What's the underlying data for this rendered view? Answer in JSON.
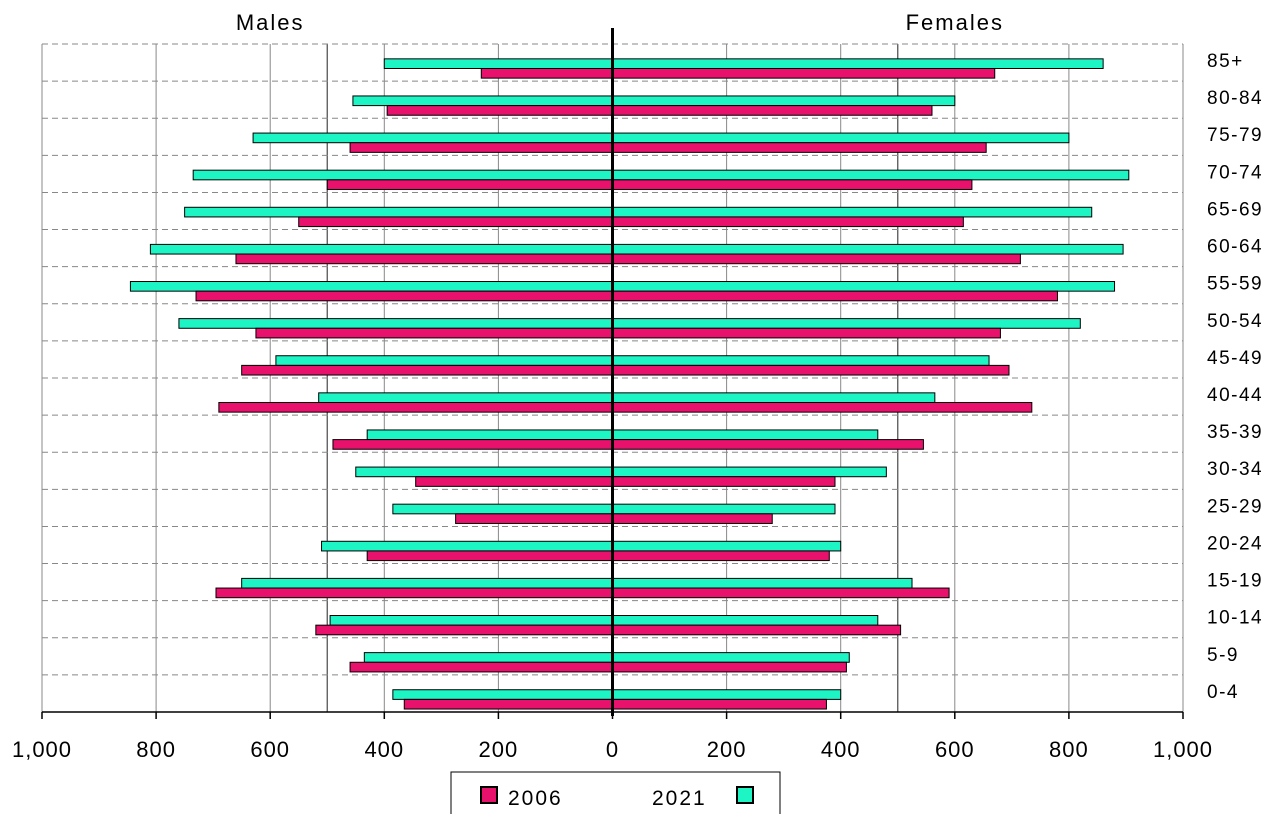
{
  "chart_data": {
    "type": "bar",
    "orientation": "horizontal",
    "subtype": "population-pyramid",
    "title": "",
    "left_label": "Males",
    "right_label": "Females",
    "categories": [
      "0-4",
      "5-9",
      "10-14",
      "15-19",
      "20-24",
      "25-29",
      "30-34",
      "35-39",
      "40-44",
      "45-49",
      "50-54",
      "55-59",
      "60-64",
      "65-69",
      "70-74",
      "75-79",
      "80-84",
      "85+"
    ],
    "xlim": [
      -1000,
      1000
    ],
    "x_ticks": [
      -1000,
      -800,
      -600,
      -400,
      -200,
      0,
      200,
      400,
      600,
      800,
      1000
    ],
    "x_tick_labels": [
      "1,000",
      "800",
      "600",
      "400",
      "200",
      "0",
      "200",
      "400",
      "600",
      "800",
      "1,000"
    ],
    "grid": {
      "vertical": true,
      "horizontal_dashed": true
    },
    "legend": {
      "placement": "bottom-center",
      "entries": [
        "2006",
        "2021"
      ]
    },
    "colors": {
      "2006": "#e8116c",
      "2021": "#1df5c5"
    },
    "series": [
      {
        "name": "2006",
        "males": [
          365,
          460,
          520,
          695,
          430,
          275,
          345,
          490,
          690,
          650,
          625,
          730,
          660,
          550,
          500,
          460,
          395,
          230
        ],
        "females": [
          375,
          410,
          505,
          590,
          380,
          280,
          390,
          545,
          735,
          695,
          680,
          780,
          715,
          615,
          630,
          655,
          560,
          670
        ]
      },
      {
        "name": "2021",
        "males": [
          385,
          435,
          495,
          650,
          510,
          385,
          450,
          430,
          515,
          590,
          760,
          845,
          810,
          750,
          735,
          630,
          455,
          400
        ],
        "females": [
          400,
          415,
          465,
          525,
          400,
          390,
          480,
          465,
          565,
          660,
          820,
          880,
          895,
          840,
          905,
          800,
          600,
          860
        ]
      }
    ]
  }
}
